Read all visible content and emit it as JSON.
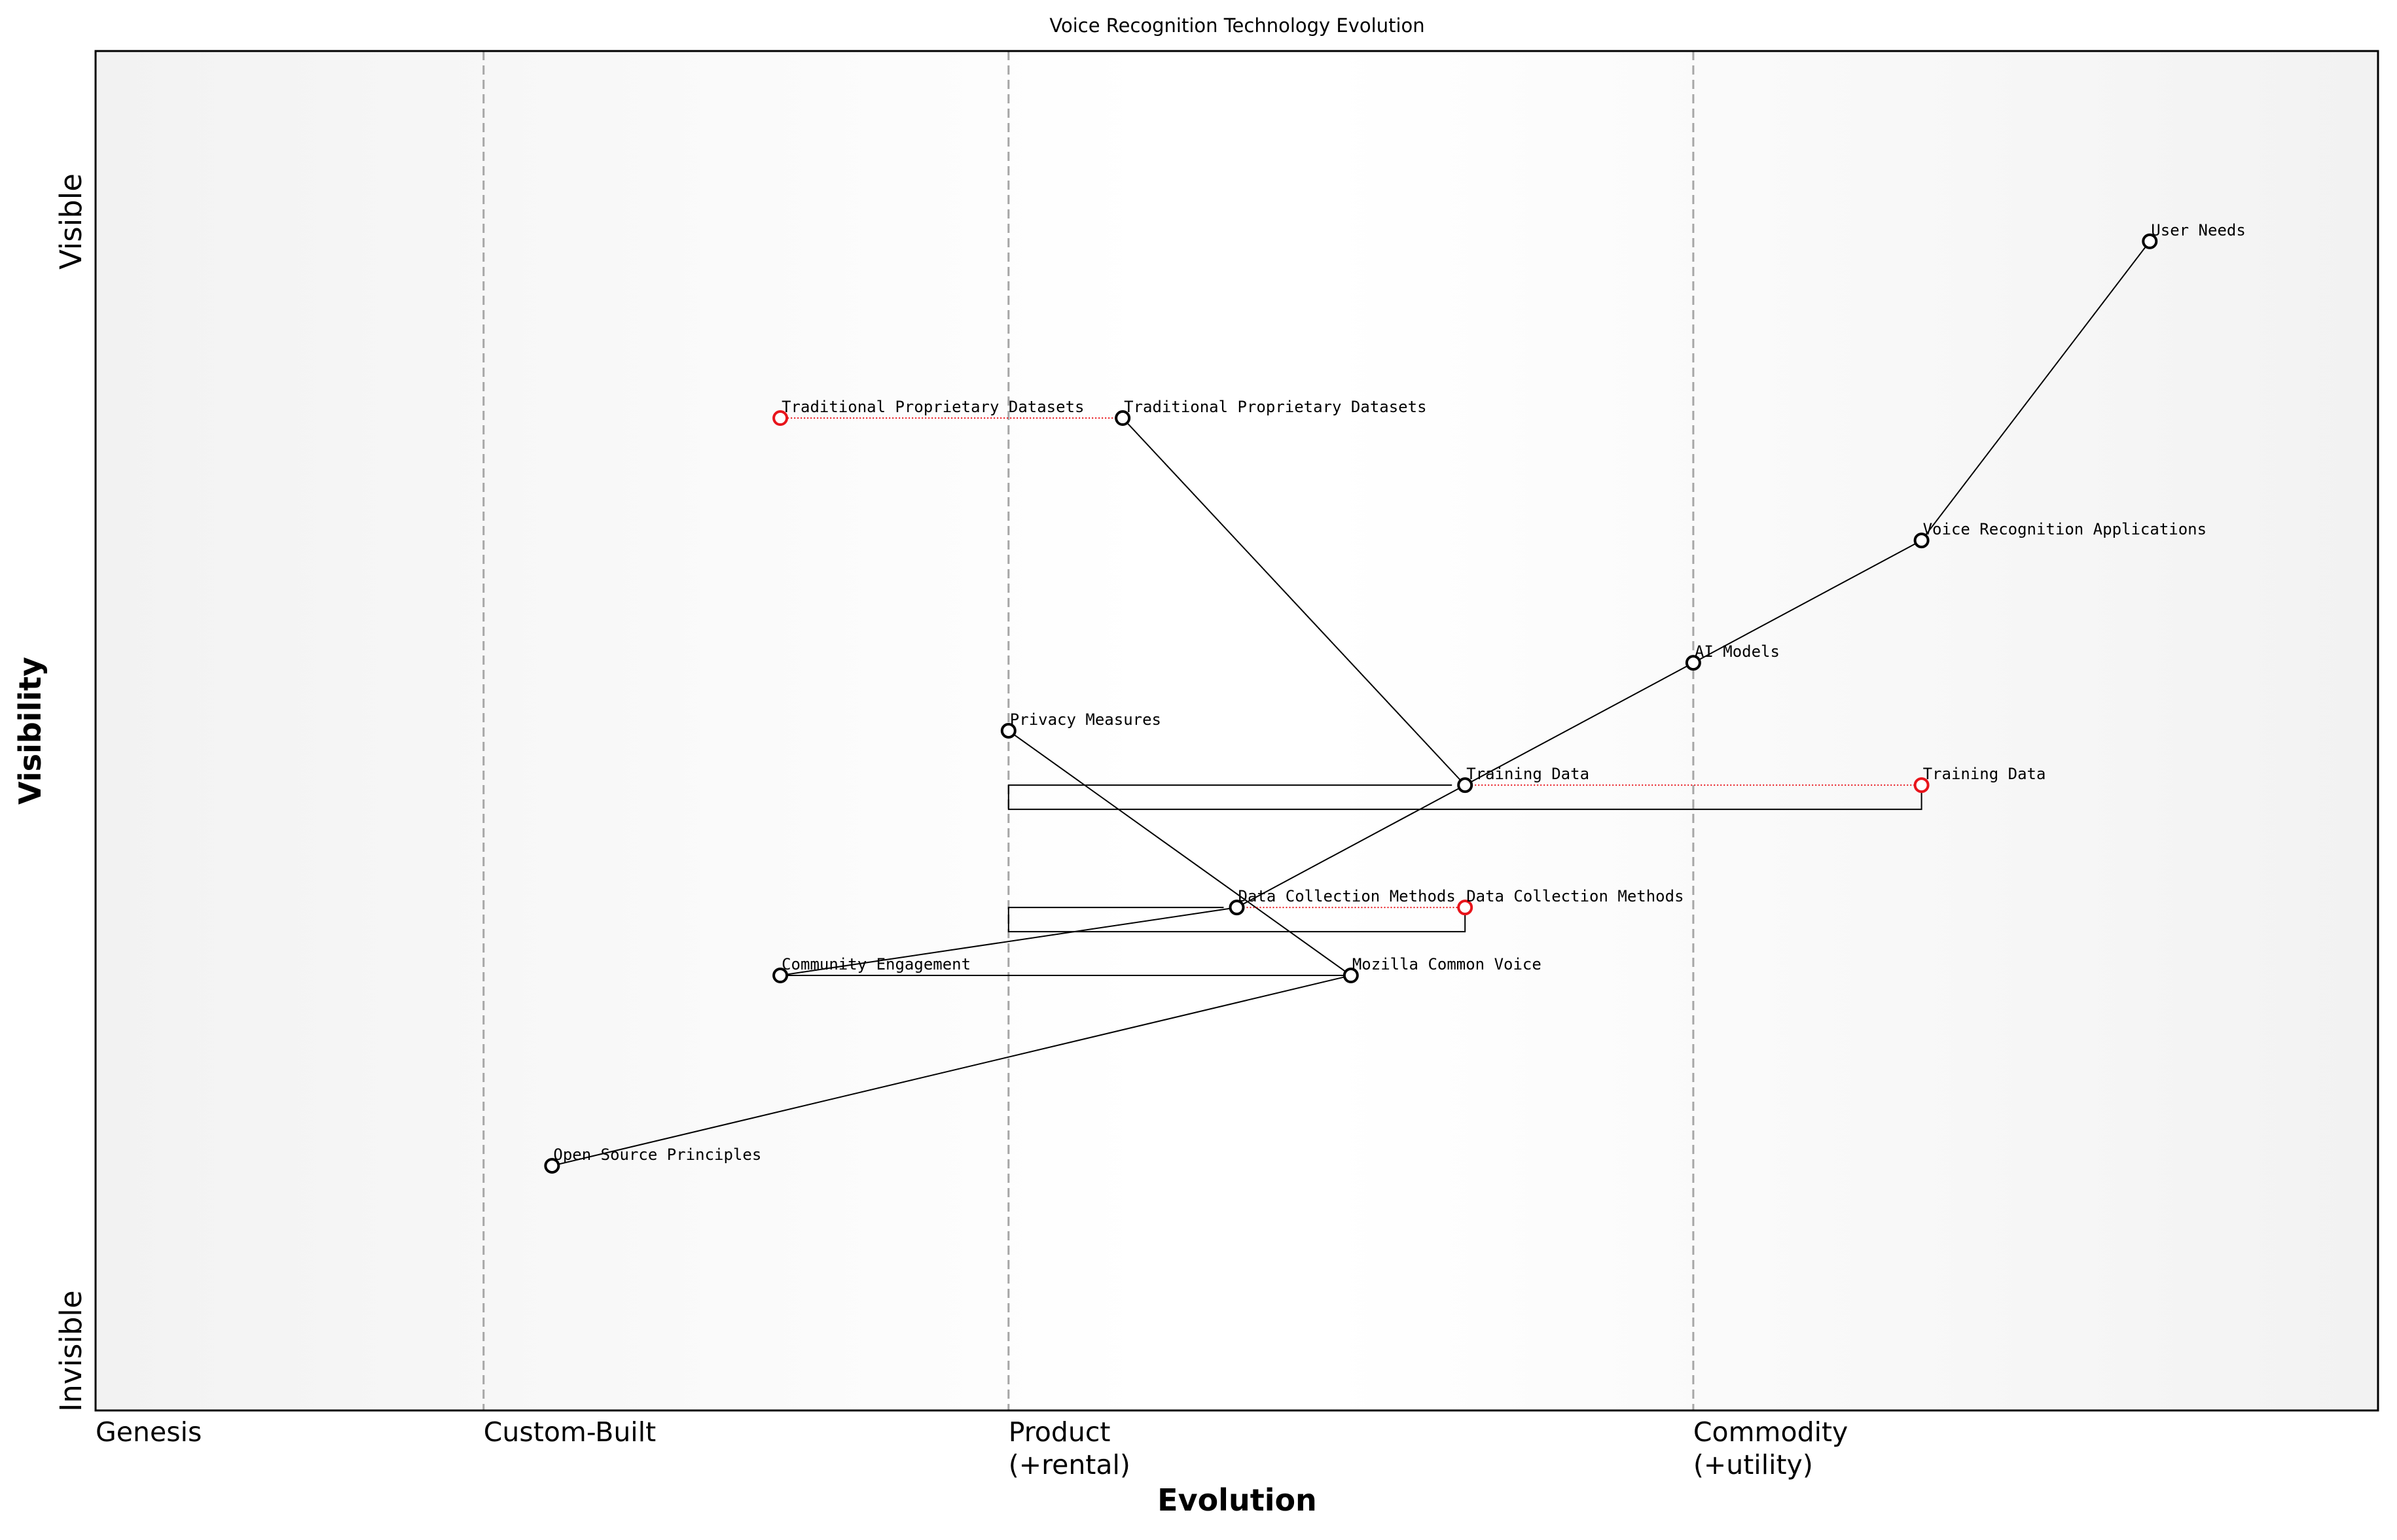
{
  "title": "Voice Recognition Technology Evolution",
  "axes": {
    "x_label": "Evolution",
    "y_label": "Visibility",
    "y_top": "Visible",
    "y_bottom": "Invisible",
    "stages": [
      {
        "id": "genesis",
        "lines": [
          "Genesis"
        ],
        "x": 0.0
      },
      {
        "id": "custom-built",
        "lines": [
          "Custom-Built"
        ],
        "x": 0.17
      },
      {
        "id": "product",
        "lines": [
          "Product",
          "(+rental)"
        ],
        "x": 0.4
      },
      {
        "id": "commodity",
        "lines": [
          "Commodity",
          "(+utility)"
        ],
        "x": 0.7
      }
    ]
  },
  "chart_data": {
    "type": "wardley-map",
    "xlim": [
      0,
      1
    ],
    "ylim": [
      0,
      1
    ],
    "components": [
      {
        "id": "user-needs",
        "label": "User Needs",
        "evolution": 0.9,
        "visibility": 0.86,
        "status": "current"
      },
      {
        "id": "voice-recognition-applications",
        "label": "Voice Recognition Applications",
        "evolution": 0.8,
        "visibility": 0.64,
        "status": "current"
      },
      {
        "id": "ai-models",
        "label": "AI Models",
        "evolution": 0.7,
        "visibility": 0.55,
        "status": "current"
      },
      {
        "id": "training-data",
        "label": "Training Data",
        "evolution": 0.6,
        "visibility": 0.46,
        "status": "current"
      },
      {
        "id": "training-data-future",
        "label": "Training Data",
        "evolution": 0.8,
        "visibility": 0.46,
        "status": "future"
      },
      {
        "id": "data-collection-methods",
        "label": "Data Collection Methods",
        "evolution": 0.5,
        "visibility": 0.37,
        "status": "current"
      },
      {
        "id": "data-collection-methods-future",
        "label": "Data Collection Methods",
        "evolution": 0.6,
        "visibility": 0.37,
        "status": "future"
      },
      {
        "id": "community-engagement",
        "label": "Community Engagement",
        "evolution": 0.3,
        "visibility": 0.32,
        "status": "current"
      },
      {
        "id": "mozilla-common-voice",
        "label": "Mozilla Common Voice",
        "evolution": 0.55,
        "visibility": 0.32,
        "status": "current"
      },
      {
        "id": "open-source-principles",
        "label": "Open Source Principles",
        "evolution": 0.2,
        "visibility": 0.18,
        "status": "current"
      },
      {
        "id": "privacy-measures",
        "label": "Privacy Measures",
        "evolution": 0.4,
        "visibility": 0.5,
        "status": "current"
      },
      {
        "id": "traditional-proprietary-datasets",
        "label": "Traditional Proprietary Datasets",
        "evolution": 0.45,
        "visibility": 0.73,
        "status": "current"
      },
      {
        "id": "traditional-proprietary-datasets-future",
        "label": "Traditional Proprietary Datasets",
        "evolution": 0.3,
        "visibility": 0.73,
        "status": "future"
      }
    ],
    "links": [
      [
        "user-needs",
        "voice-recognition-applications"
      ],
      [
        "voice-recognition-applications",
        "ai-models"
      ],
      [
        "ai-models",
        "training-data"
      ],
      [
        "training-data",
        "data-collection-methods"
      ],
      [
        "data-collection-methods",
        "community-engagement"
      ],
      [
        "community-engagement",
        "mozilla-common-voice"
      ],
      [
        "mozilla-common-voice",
        "open-source-principles"
      ],
      [
        "mozilla-common-voice",
        "privacy-measures"
      ],
      [
        "traditional-proprietary-datasets",
        "training-data"
      ]
    ],
    "evolutions": [
      [
        "training-data",
        "training-data-future"
      ],
      [
        "data-collection-methods",
        "data-collection-methods-future"
      ],
      [
        "traditional-proprietary-datasets",
        "traditional-proprietary-datasets-future"
      ]
    ],
    "colors": {
      "current": "#000000",
      "future": "#e8141b",
      "evolution_line": "#e8141b",
      "stage_divider": "#a6a6a6",
      "band_edge": "#f2f2f2",
      "band_center": "#ffffff"
    }
  }
}
